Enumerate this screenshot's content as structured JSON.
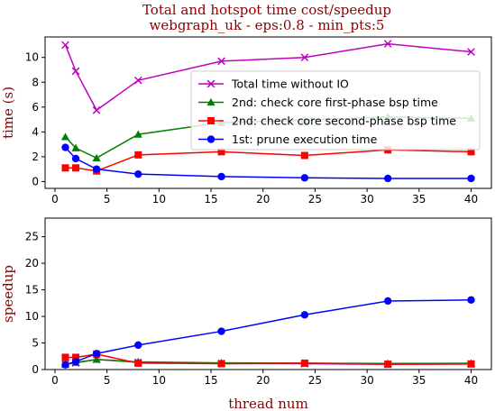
{
  "figure": {
    "title_line1": "Total and hotspot time cost/speedup",
    "title_line2": "webgraph_uk - eps:0.8 - min_pts:5",
    "title_color": "#8b0000"
  },
  "chart_data": [
    {
      "type": "line",
      "ylabel": "time (s)",
      "xlim": [
        -0.95,
        41.95
      ],
      "ylim": [
        -0.55,
        11.65
      ],
      "xticks": [
        0,
        5,
        10,
        15,
        20,
        25,
        30,
        35,
        40
      ],
      "xtick_labels": [
        "0",
        "5",
        "10",
        "15",
        "20",
        "25",
        "30",
        "35",
        "40"
      ],
      "yticks": [
        0,
        2,
        4,
        6,
        8,
        10
      ],
      "ytick_labels": [
        "0",
        "2",
        "4",
        "6",
        "8",
        "10"
      ],
      "legend_position": "center-right",
      "x": [
        1,
        2,
        4,
        8,
        16,
        24,
        32,
        40
      ],
      "series": [
        {
          "name": "Total time without IO",
          "color": "#bf00bf",
          "marker": "x",
          "values": [
            11.0,
            8.9,
            5.75,
            8.15,
            9.7,
            10.0,
            11.1,
            10.45
          ]
        },
        {
          "name": "2nd: check core first-phase bsp time",
          "color": "#008000",
          "marker": "triangle",
          "values": [
            3.6,
            2.7,
            1.9,
            3.8,
            4.75,
            4.95,
            5.2,
            5.1
          ]
        },
        {
          "name": "2nd: check core second-phase bsp time",
          "color": "#ff0000",
          "marker": "square",
          "values": [
            1.1,
            1.1,
            0.85,
            2.15,
            2.4,
            2.1,
            2.55,
            2.4
          ]
        },
        {
          "name": "1st: prune execution time",
          "color": "#0000ff",
          "marker": "circle",
          "values": [
            2.75,
            1.85,
            1.0,
            0.6,
            0.4,
            0.3,
            0.25,
            0.25
          ]
        }
      ]
    },
    {
      "type": "line",
      "xlabel": "thread num",
      "ylabel": "speedup",
      "xlim": [
        -0.95,
        41.95
      ],
      "ylim": [
        0,
        28.5
      ],
      "xticks": [
        0,
        5,
        10,
        15,
        20,
        25,
        30,
        35,
        40
      ],
      "xtick_labels": [
        "0",
        "5",
        "10",
        "15",
        "20",
        "25",
        "30",
        "35",
        "40"
      ],
      "yticks": [
        0,
        5,
        10,
        15,
        20,
        25
      ],
      "ytick_labels": [
        "0",
        "5",
        "10",
        "15",
        "20",
        "25"
      ],
      "x": [
        1,
        2,
        4,
        8,
        16,
        24,
        32,
        40
      ],
      "series": [
        {
          "color": "#bf00bf",
          "marker": "x",
          "values": [
            1.0,
            1.24,
            1.91,
            1.35,
            1.13,
            1.1,
            0.99,
            1.05
          ]
        },
        {
          "color": "#008000",
          "marker": "triangle",
          "values": [
            1.0,
            1.33,
            1.89,
            1.45,
            1.25,
            1.2,
            1.15,
            1.18
          ]
        },
        {
          "color": "#ff0000",
          "marker": "square",
          "values": [
            2.3,
            2.3,
            2.9,
            1.2,
            1.1,
            1.2,
            1.0,
            1.05
          ]
        },
        {
          "color": "#0000ff",
          "marker": "circle",
          "values": [
            0.9,
            1.5,
            3.0,
            4.6,
            7.2,
            10.3,
            12.9,
            13.1
          ]
        }
      ]
    }
  ]
}
